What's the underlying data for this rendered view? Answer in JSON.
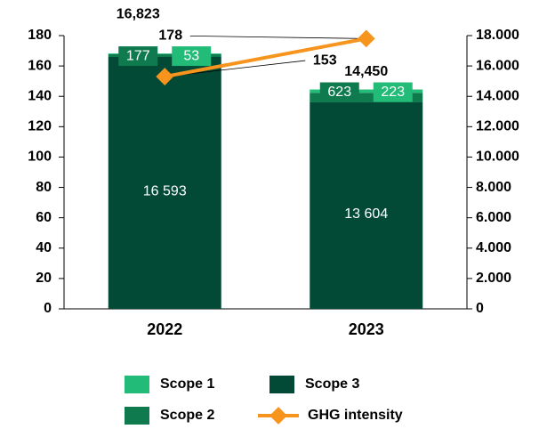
{
  "chart_data": {
    "type": "bar",
    "categories": [
      "2022",
      "2023"
    ],
    "series": [
      {
        "name": "Scope 1",
        "color": "#22bb78",
        "axis": "y2",
        "values": [
          53,
          223
        ]
      },
      {
        "name": "Scope 2",
        "color": "#0e7a4e",
        "axis": "y2",
        "values": [
          177,
          623
        ]
      },
      {
        "name": "Scope 3",
        "color": "#034a36",
        "axis": "y2",
        "values": [
          16593,
          13604
        ],
        "value_labels": [
          "16 593",
          "13 604"
        ]
      },
      {
        "name": "GHG intensity",
        "color": "#f7941d",
        "type": "line",
        "values": [
          153,
          178
        ]
      }
    ],
    "totals": {
      "values": [
        16823,
        14450
      ],
      "value_labels": [
        "16,823",
        "14,450"
      ]
    },
    "ylim": [
      0,
      180
    ],
    "yticks": [
      0,
      20,
      40,
      60,
      80,
      100,
      120,
      140,
      160,
      180
    ],
    "y2lim": [
      0,
      18000
    ],
    "y2ticks": [
      0,
      {
        "value": 2000,
        "label": "2.000"
      },
      {
        "value": 4000,
        "label": "4.000"
      },
      {
        "value": 6000,
        "label": "6.000"
      },
      {
        "value": 8000,
        "label": "8.000"
      },
      {
        "value": 10000,
        "label": "10.000"
      },
      {
        "value": 12000,
        "label": "12.000"
      },
      {
        "value": 14000,
        "label": "14.000"
      },
      {
        "value": 16000,
        "label": "16.000"
      },
      {
        "value": 18000,
        "label": "18.000"
      }
    ]
  }
}
